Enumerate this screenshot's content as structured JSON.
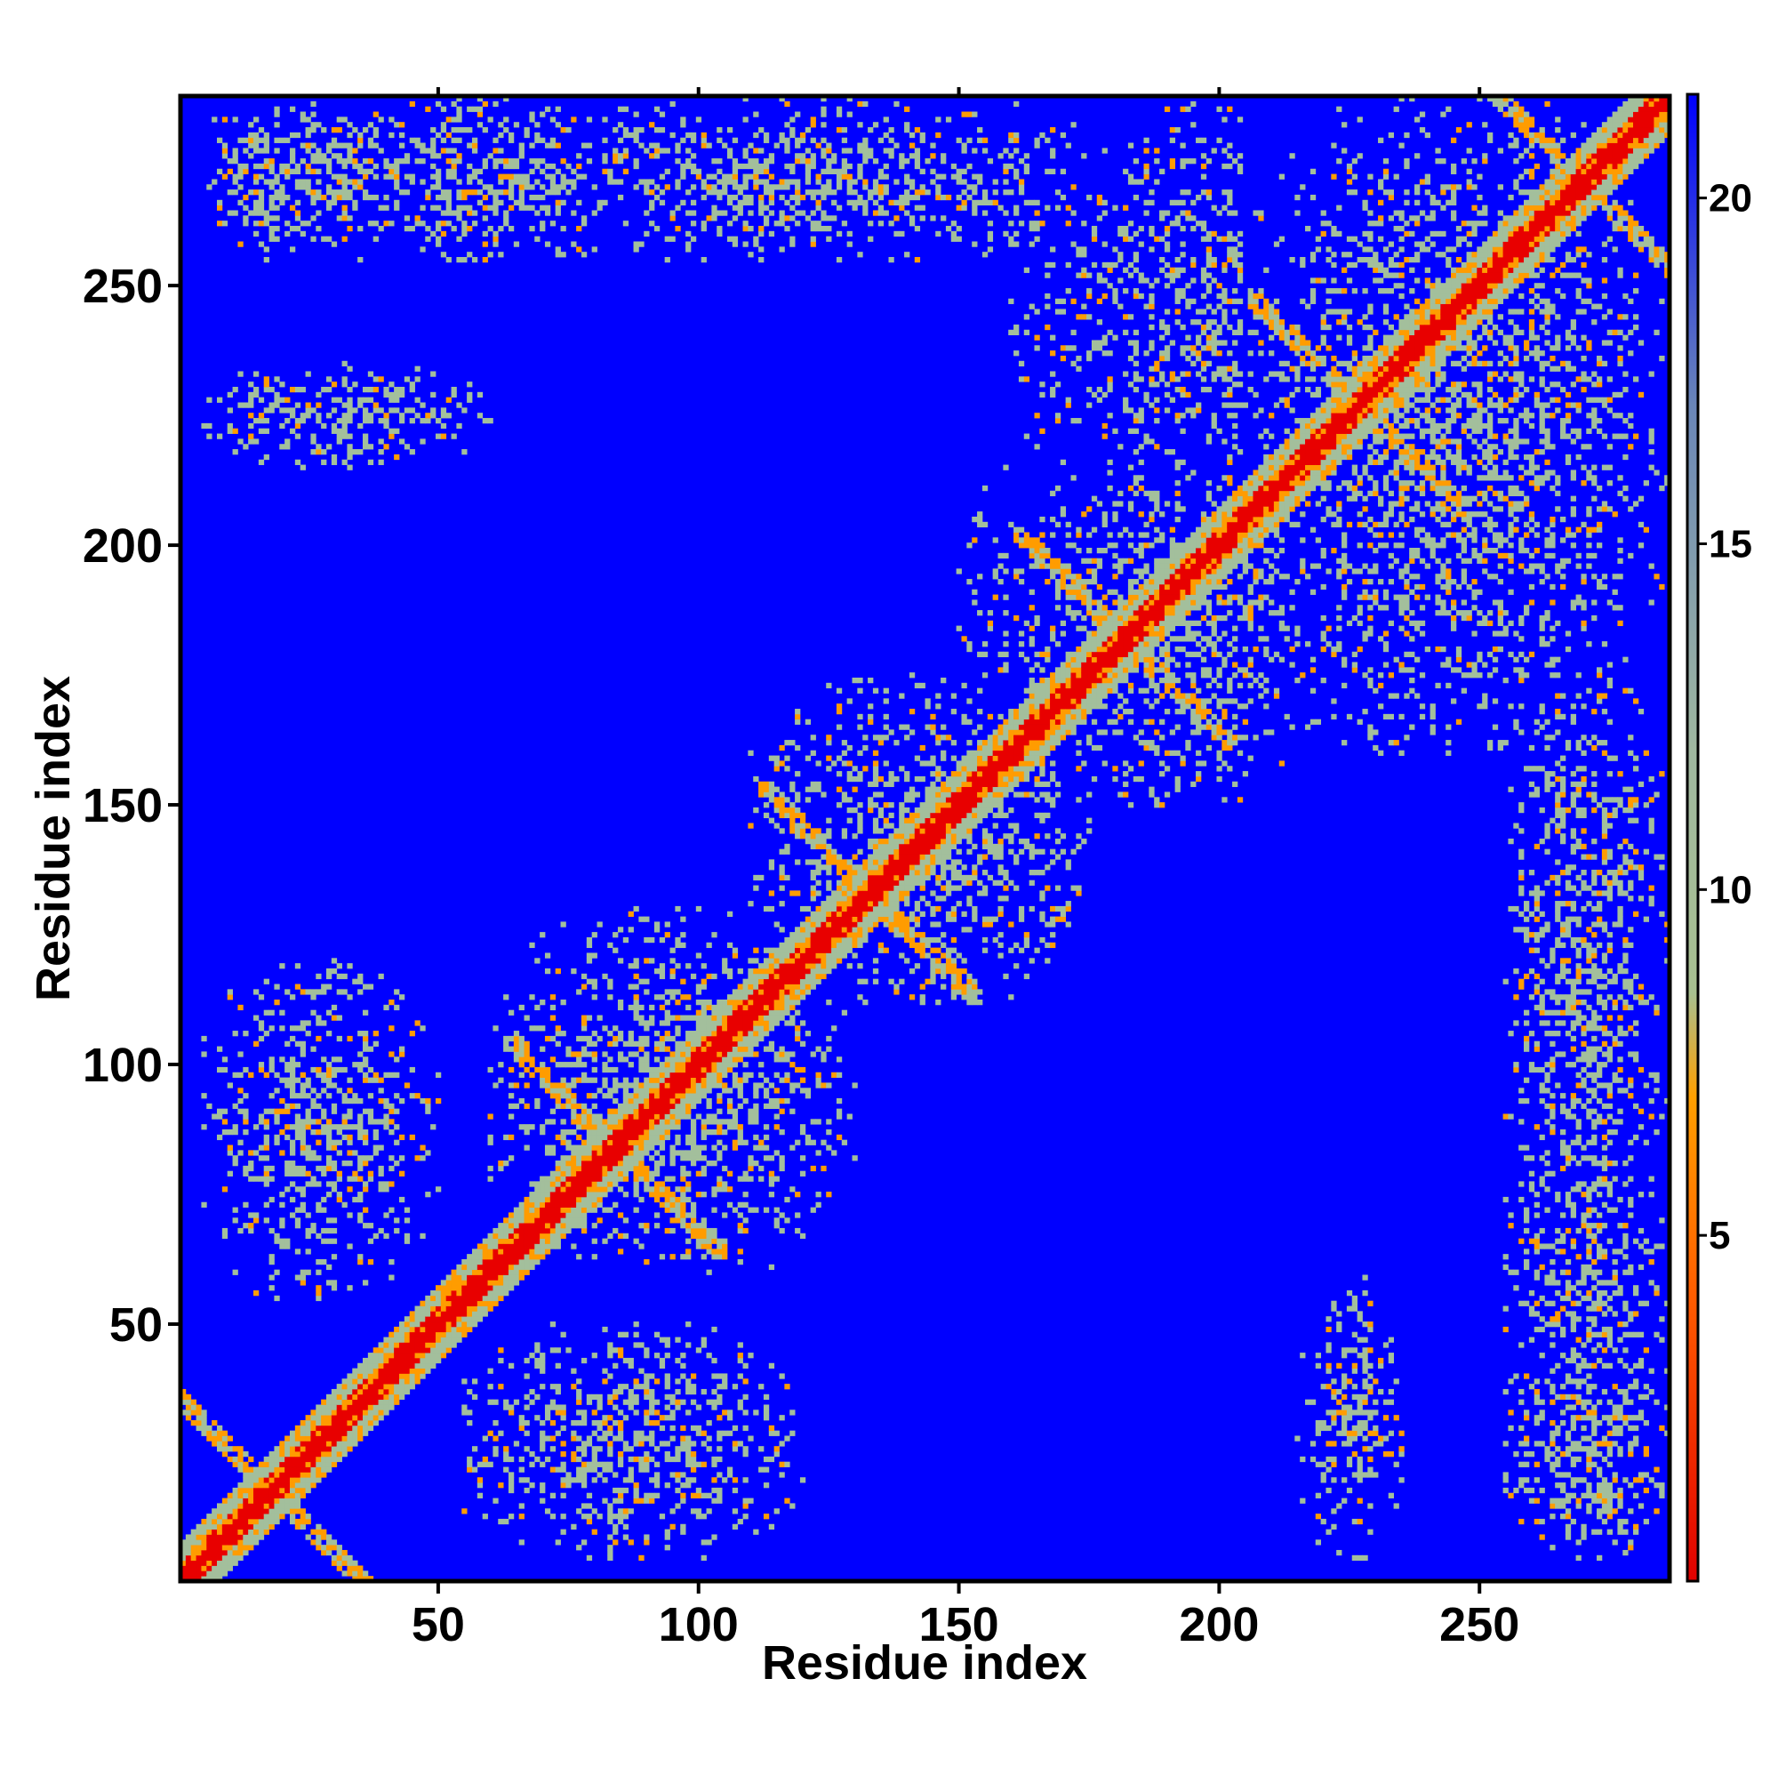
{
  "chart_data": {
    "type": "heatmap",
    "title": "",
    "xlabel": "Residue index",
    "ylabel": "Residue index",
    "n_residues": 286,
    "xlim": [
      1,
      286
    ],
    "ylim": [
      1,
      286
    ],
    "x_ticks": [
      50,
      100,
      150,
      200,
      250
    ],
    "y_ticks": [
      50,
      100,
      150,
      200,
      250
    ],
    "colorbar": {
      "ticks": [
        5,
        10,
        15,
        20
      ],
      "range": [
        0,
        21.5
      ],
      "stops": [
        {
          "value": 0,
          "color": "#e00000"
        },
        {
          "value": 4,
          "color": "#ff5a00"
        },
        {
          "value": 7,
          "color": "#ffa000"
        },
        {
          "value": 8.5,
          "color": "#a8c090"
        },
        {
          "value": 12,
          "color": "#a0b8a0"
        },
        {
          "value": 17,
          "color": "#6a86b8"
        },
        {
          "value": 21.5,
          "color": "#0000ff"
        }
      ]
    },
    "colors": {
      "background_far": "#0000ff",
      "contact_mid": "#a3bf9c",
      "contact_close": "#ff9c00",
      "diagonal": "#e80000"
    },
    "contact_features": {
      "diagonal": [
        [
          1,
          1
        ],
        [
          286,
          286
        ]
      ],
      "antiparallel_pairs": [
        {
          "center": [
            18,
            18
          ],
          "note": "diagonal crossing"
        },
        {
          "center": [
            84,
            84
          ]
        },
        {
          "center": [
            133,
            133
          ]
        },
        {
          "center": [
            182,
            182
          ]
        },
        {
          "center": [
            227,
            227
          ]
        },
        {
          "center": [
            270,
            270
          ]
        }
      ],
      "long_range_blocks": [
        {
          "x": [
            5,
            30
          ],
          "y": [
            255,
            286
          ]
        },
        {
          "x": [
            25,
            95
          ],
          "y": [
            255,
            286
          ]
        },
        {
          "x": [
            255,
            286
          ],
          "y": [
            5,
            55
          ]
        },
        {
          "x": [
            215,
            235
          ],
          "y": [
            5,
            60
          ]
        },
        {
          "x": [
            5,
            50
          ],
          "y": [
            55,
            120
          ]
        },
        {
          "x": [
            60,
            130
          ],
          "y": [
            60,
            130
          ]
        },
        {
          "x": [
            110,
            175
          ],
          "y": [
            110,
            175
          ]
        },
        {
          "x": [
            160,
            220
          ],
          "y": [
            150,
            220
          ]
        },
        {
          "x": [
            205,
            286
          ],
          "y": [
            160,
            286
          ]
        },
        {
          "x": [
            255,
            286
          ],
          "y": [
            60,
            180
          ]
        }
      ]
    }
  }
}
